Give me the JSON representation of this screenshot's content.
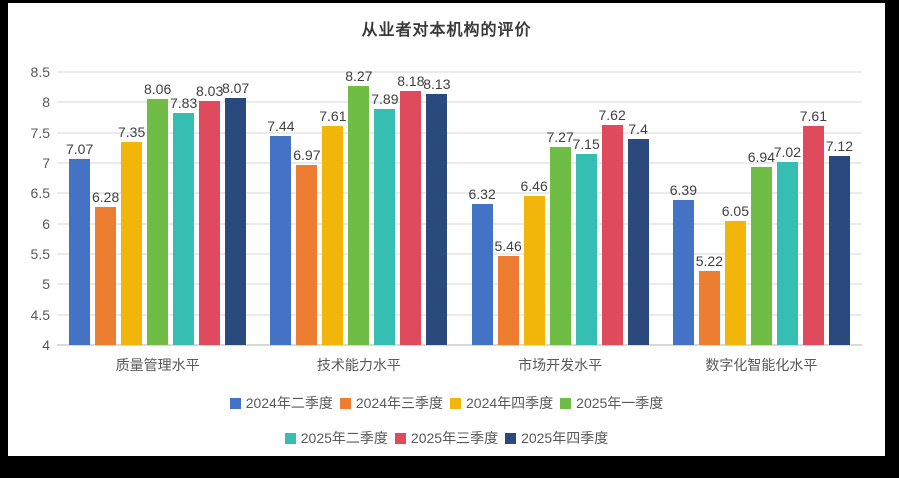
{
  "frame": {
    "background_color": "#000000",
    "card_color": "#ffffff"
  },
  "chart_data": {
    "type": "bar",
    "title": "从业者对本机构的评价",
    "categories": [
      "质量管理水平",
      "技术能力水平",
      "市场开发水平",
      "数字化智能化水平"
    ],
    "series": [
      {
        "name": "2024年二季度",
        "color": "#4472C4",
        "values": [
          7.07,
          7.44,
          6.32,
          6.39
        ]
      },
      {
        "name": "2024年三季度",
        "color": "#ED7D31",
        "values": [
          6.28,
          6.97,
          5.46,
          5.22
        ]
      },
      {
        "name": "2024年四季度",
        "color": "#F2B50A",
        "values": [
          7.35,
          7.61,
          6.46,
          6.05
        ]
      },
      {
        "name": "2025年一季度",
        "color": "#6FBD45",
        "values": [
          8.06,
          8.27,
          7.27,
          6.94
        ]
      },
      {
        "name": "2025年二季度",
        "color": "#35BEB1",
        "values": [
          7.83,
          7.89,
          7.15,
          7.02
        ]
      },
      {
        "name": "2025年三季度",
        "color": "#E04A5D",
        "values": [
          8.03,
          8.18,
          7.62,
          7.61
        ]
      },
      {
        "name": "2025年四季度",
        "color": "#2A4A7D",
        "values": [
          8.07,
          8.13,
          7.4,
          7.12
        ]
      }
    ],
    "y_axis": {
      "min": 4,
      "max": 8.5,
      "step": 0.5,
      "tick_labels": [
        "8.5",
        "8",
        "7.5",
        "7",
        "6.5",
        "6",
        "5.5",
        "5",
        "4.5",
        "4"
      ]
    },
    "grid": true,
    "data_labels": true,
    "legend_position": "bottom",
    "legend_rows": [
      [
        "2024年二季度",
        "2024年三季度",
        "2024年四季度",
        "2025年一季度"
      ],
      [
        "2025年二季度",
        "2025年三季度",
        "2025年四季度"
      ]
    ],
    "text_colors": {
      "title": "#3a3a3a",
      "axis": "#595959",
      "data_label": "#404040"
    }
  }
}
